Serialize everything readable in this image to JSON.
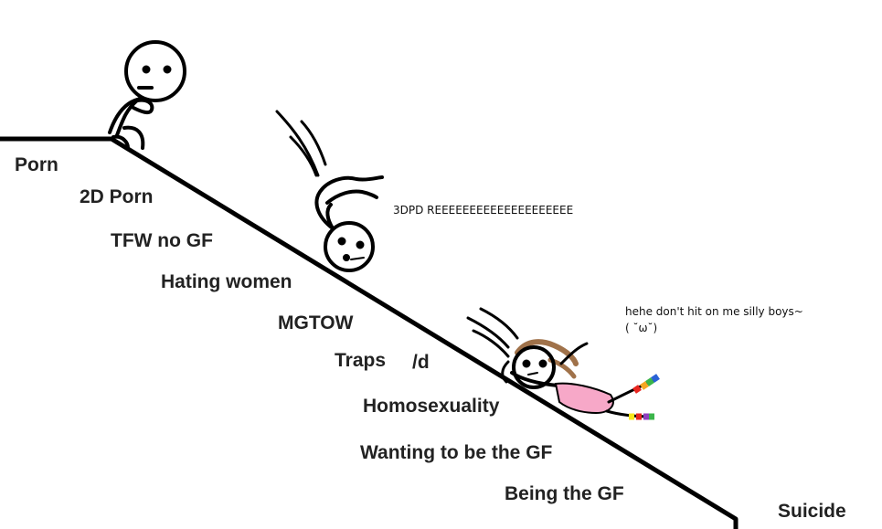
{
  "slope_labels": {
    "porn": "Porn",
    "porn_2d": "2D Porn",
    "tfw_no_gf": "TFW no GF",
    "hating_women": "Hating women",
    "mgtow": "MGTOW",
    "traps": "Traps",
    "traps_d": "/d",
    "homosexuality": "Homosexuality",
    "wanting_to_be_gf": "Wanting to be the GF",
    "being_gf": "Being the GF",
    "suicide": "Suicide"
  },
  "speech": {
    "falling_guy": "3DPD REEEEEEEEEEEEEEEEEEEE",
    "girl_line1": "hehe don't hit on me silly boys~",
    "girl_line2": "( ˘ω˘)"
  },
  "colors": {
    "ink": "#000000",
    "hair": "#a0724a",
    "dress": "#f7a8c8",
    "rainbow": [
      "#e8261f",
      "#f5a623",
      "#f8e71c",
      "#3bb54a",
      "#2a62d6",
      "#8e3fbf"
    ]
  }
}
